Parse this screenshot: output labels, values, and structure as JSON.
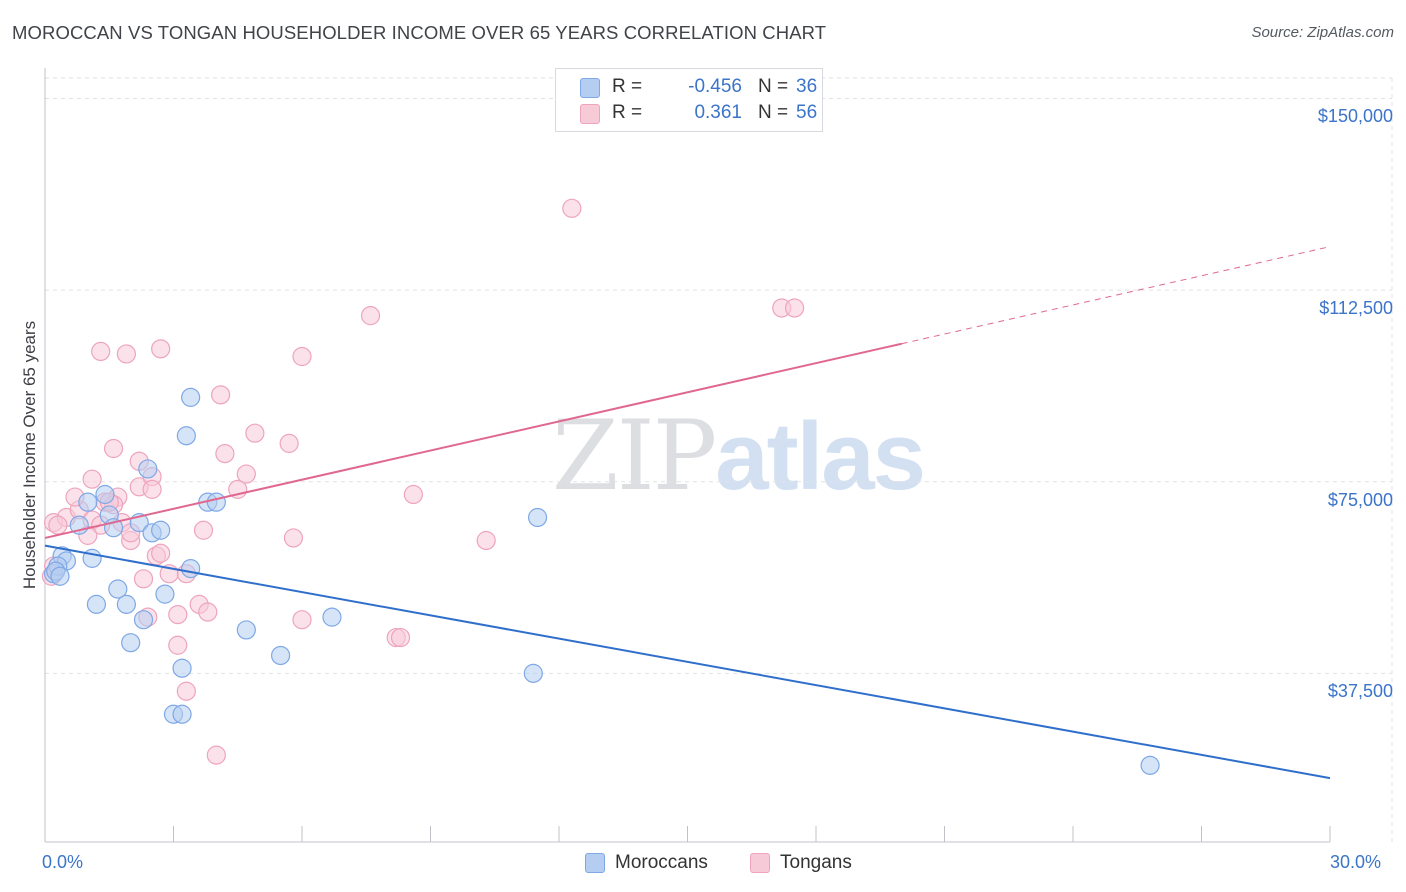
{
  "title": "MOROCCAN VS TONGAN HOUSEHOLDER INCOME OVER 65 YEARS CORRELATION CHART",
  "source": "Source: ZipAtlas.com",
  "watermark": {
    "zip": "ZIP",
    "atlas": "atlas"
  },
  "legend": {
    "rows": [
      {
        "r_label": "R =",
        "r_value": "-0.456",
        "n_label": "N =",
        "n_value": "36"
      },
      {
        "r_label": "R =",
        "r_value": "0.361",
        "n_label": "N =",
        "n_value": "56"
      }
    ]
  },
  "chart_data": {
    "type": "scatter",
    "title": "MOROCCAN VS TONGAN HOUSEHOLDER INCOME OVER 65 YEARS CORRELATION CHART",
    "xlabel": "",
    "ylabel": "Householder Income Over 65 years",
    "xlim": [
      0,
      30
    ],
    "ylim": [
      4500,
      154000
    ],
    "x_tick_labels": [
      "0.0%",
      "30.0%"
    ],
    "y_ticks": [
      37500,
      75000,
      112500,
      150000
    ],
    "y_tick_labels": [
      "$37,500",
      "$75,000",
      "$112,500",
      "$150,000"
    ],
    "grid": true,
    "legend_position": "top-center",
    "series": [
      {
        "name": "Moroccans",
        "color": "#7fa8e6",
        "fill": "#b4cdf0",
        "line_color": "#2f6fcb",
        "r": -0.456,
        "n": 36,
        "trend": {
          "x0": 0,
          "y0": 62500,
          "x1": 30,
          "y1": 17000,
          "dash_from": null
        },
        "points": [
          [
            0.2,
            57000
          ],
          [
            0.4,
            60500
          ],
          [
            0.5,
            59500
          ],
          [
            1.1,
            60000
          ],
          [
            0.8,
            66500
          ],
          [
            1.0,
            71000
          ],
          [
            1.5,
            68500
          ],
          [
            1.4,
            72500
          ],
          [
            1.6,
            66000
          ],
          [
            2.2,
            67000
          ],
          [
            2.5,
            65000
          ],
          [
            2.7,
            65500
          ],
          [
            2.4,
            77500
          ],
          [
            1.2,
            51000
          ],
          [
            1.7,
            54000
          ],
          [
            1.9,
            51000
          ],
          [
            2.3,
            48000
          ],
          [
            2.8,
            53000
          ],
          [
            2.0,
            43500
          ],
          [
            3.4,
            58000
          ],
          [
            3.8,
            71000
          ],
          [
            4.0,
            71000
          ],
          [
            3.3,
            84000
          ],
          [
            3.4,
            91500
          ],
          [
            4.7,
            46000
          ],
          [
            5.5,
            41000
          ],
          [
            6.7,
            48500
          ],
          [
            3.2,
            38500
          ],
          [
            3.0,
            29500
          ],
          [
            3.2,
            29500
          ],
          [
            11.4,
            37500
          ],
          [
            11.5,
            68000
          ],
          [
            25.8,
            19500
          ],
          [
            0.3,
            58500
          ],
          [
            0.25,
            57500
          ],
          [
            0.35,
            56500
          ]
        ]
      },
      {
        "name": "Tongans",
        "color": "#eea4bd",
        "fill": "#f7cad8",
        "line_color": "#e06890",
        "r": 0.361,
        "n": 56,
        "trend": {
          "x0": 0,
          "y0": 64000,
          "x1": 30,
          "y1": 121000,
          "dash_from": 20.0
        },
        "points": [
          [
            0.2,
            67000
          ],
          [
            0.5,
            68000
          ],
          [
            0.8,
            69500
          ],
          [
            1.1,
            67500
          ],
          [
            1.4,
            71000
          ],
          [
            1.7,
            72000
          ],
          [
            0.7,
            72000
          ],
          [
            1.1,
            75500
          ],
          [
            1.6,
            70500
          ],
          [
            1.8,
            67000
          ],
          [
            2.0,
            63500
          ],
          [
            1.3,
            66500
          ],
          [
            1.6,
            81500
          ],
          [
            2.2,
            74000
          ],
          [
            2.2,
            79000
          ],
          [
            2.5,
            76000
          ],
          [
            2.5,
            73500
          ],
          [
            2.6,
            60500
          ],
          [
            2.3,
            56000
          ],
          [
            2.4,
            48500
          ],
          [
            2.9,
            57000
          ],
          [
            3.1,
            49000
          ],
          [
            3.1,
            43000
          ],
          [
            3.3,
            57000
          ],
          [
            3.6,
            51000
          ],
          [
            3.8,
            49500
          ],
          [
            3.7,
            65500
          ],
          [
            3.3,
            34000
          ],
          [
            4.0,
            21500
          ],
          [
            4.1,
            92000
          ],
          [
            4.2,
            80500
          ],
          [
            4.5,
            73500
          ],
          [
            4.7,
            76500
          ],
          [
            4.9,
            84500
          ],
          [
            5.7,
            82500
          ],
          [
            5.8,
            64000
          ],
          [
            6.0,
            99500
          ],
          [
            6.0,
            48000
          ],
          [
            7.6,
            107500
          ],
          [
            8.2,
            44500
          ],
          [
            8.3,
            44500
          ],
          [
            8.6,
            72500
          ],
          [
            10.3,
            63500
          ],
          [
            12.3,
            128500
          ],
          [
            17.2,
            109000
          ],
          [
            17.5,
            109000
          ],
          [
            1.3,
            100500
          ],
          [
            1.9,
            100000
          ],
          [
            2.7,
            101000
          ],
          [
            0.15,
            56500
          ],
          [
            0.2,
            58500
          ],
          [
            0.3,
            66500
          ],
          [
            1.0,
            64500
          ],
          [
            2.7,
            61000
          ],
          [
            1.5,
            71000
          ],
          [
            2.0,
            65000
          ]
        ]
      }
    ]
  }
}
